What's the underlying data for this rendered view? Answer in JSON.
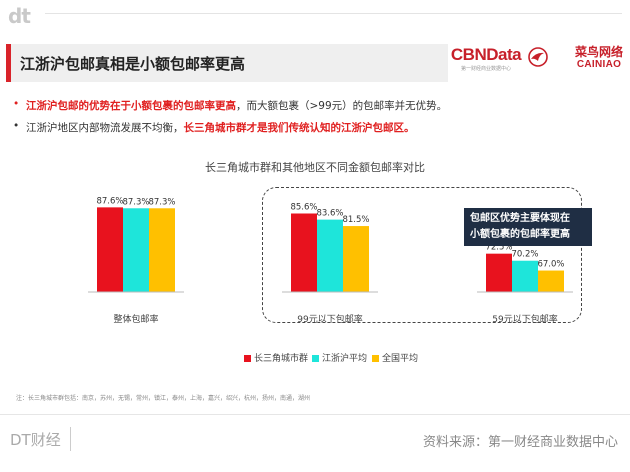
{
  "header": {
    "top_logo": "dt",
    "title": "江浙沪包邮真相是小额包邮率更高",
    "cbn_brand": "CBNData",
    "cbn_sub": "第一财经商业数据中心",
    "cainiao_cn": "菜鸟网络",
    "cainiao_en": "CAINIAO"
  },
  "bullets": [
    {
      "red": "江浙沪包邮的优势在于小额包裹的包邮率更高",
      "plain": "，而大额包裹（>99元）的包邮率并无优势。"
    },
    {
      "plain": "江浙沪地区内部物流发展不均衡，",
      "red": "长三角城市群才是我们传统认知的江浙沪包邮区。"
    }
  ],
  "callout": [
    "包邮区优势主要体现在",
    "小额包裹的包邮率更高"
  ],
  "chart_data": {
    "type": "bar",
    "title": "长三角城市群和其他地区不同金额包邮率对比",
    "categories": [
      "整体包邮率",
      "99元以下包邮率",
      "59元以下包邮率"
    ],
    "series": [
      {
        "name": "长三角城市群",
        "values": [
          87.6,
          85.6,
          72.5
        ],
        "labels": [
          "87.6%",
          "85.6%",
          "72.5%"
        ],
        "color": "#e8121e"
      },
      {
        "name": "江浙沪平均",
        "values": [
          87.3,
          83.6,
          70.2
        ],
        "labels": [
          "87.3%",
          "83.6%",
          "70.2%"
        ],
        "color": "#1ee5da"
      },
      {
        "name": "全国平均",
        "values": [
          87.3,
          81.5,
          67.0
        ],
        "labels": [
          "87.3%",
          "81.5%",
          "67.0%"
        ],
        "color": "#ffc000"
      }
    ],
    "ylim": [
      60,
      90
    ],
    "grid": false,
    "legend": "bottom-center"
  },
  "note": "注：长三角城市群包括：南京，苏州，无锡，常州，镇江，泰州，上海，嘉兴，绍兴，杭州，扬州，南通，湖州",
  "footer": {
    "logo": "DT财经",
    "source": "资料来源：第一财经商业数据中心"
  }
}
